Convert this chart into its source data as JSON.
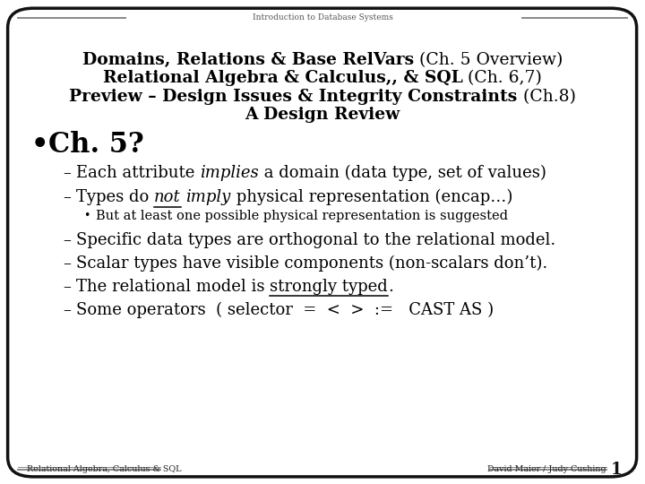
{
  "bg_color": "#ffffff",
  "header_label": "Introduction to Database Systems",
  "title_lines": [
    [
      {
        "text": "Domains, Relations & Base RelVars",
        "bold": true,
        "italic": false
      },
      {
        "text": " (Ch. 5 Overview)",
        "bold": false,
        "italic": false
      }
    ],
    [
      {
        "text": "Relational Algebra & Calculus,, & SQL",
        "bold": true,
        "italic": false
      },
      {
        "text": " (Ch. 6,7)",
        "bold": false,
        "italic": false
      }
    ],
    [
      {
        "text": "Preview – Design Issues & Integrity Constraints",
        "bold": true,
        "italic": false
      },
      {
        "text": " (Ch.8)",
        "bold": false,
        "italic": false
      }
    ],
    [
      {
        "text": "A Design Review",
        "bold": true,
        "italic": false
      }
    ]
  ],
  "footer_left": "Relational Algebra, Calculus & SQL",
  "footer_right": "David Maier / Judy Cushing",
  "footer_page": "1",
  "main_bullet": "Ch. 5?",
  "items": [
    {
      "type": "dash",
      "parts": [
        {
          "text": "Each attribute ",
          "bold": false,
          "italic": false,
          "underline": false
        },
        {
          "text": "implies",
          "bold": false,
          "italic": true,
          "underline": false
        },
        {
          "text": " a domain (data type, set of values)",
          "bold": false,
          "italic": false,
          "underline": false
        }
      ]
    },
    {
      "type": "dash",
      "parts": [
        {
          "text": "Types do ",
          "bold": false,
          "italic": false,
          "underline": false
        },
        {
          "text": "not",
          "bold": false,
          "italic": true,
          "underline": true
        },
        {
          "text": " ",
          "bold": false,
          "italic": false,
          "underline": false
        },
        {
          "text": "imply",
          "bold": false,
          "italic": true,
          "underline": false
        },
        {
          "text": " physical representation (encap…)",
          "bold": false,
          "italic": false,
          "underline": false
        }
      ]
    },
    {
      "type": "subbullet",
      "parts": [
        {
          "text": "But at least one possible physical representation is suggested",
          "bold": false,
          "italic": false,
          "underline": false
        }
      ]
    },
    {
      "type": "dash",
      "parts": [
        {
          "text": "Specific data types are orthogonal to the relational model.",
          "bold": false,
          "italic": false,
          "underline": false
        }
      ]
    },
    {
      "type": "dash",
      "parts": [
        {
          "text": "Scalar types have visible components (non-scalars don’t).",
          "bold": false,
          "italic": false,
          "underline": false
        }
      ]
    },
    {
      "type": "dash",
      "parts": [
        {
          "text": "The relational model is ",
          "bold": false,
          "italic": false,
          "underline": false
        },
        {
          "text": "strongly typed",
          "bold": false,
          "italic": false,
          "underline": true
        },
        {
          "text": ".",
          "bold": false,
          "italic": false,
          "underline": false
        }
      ]
    },
    {
      "type": "dash",
      "parts": [
        {
          "text": "Some operators  ( selector  =  <  >  :=   CAST AS )",
          "bold": false,
          "italic": false,
          "underline": false
        }
      ]
    }
  ]
}
